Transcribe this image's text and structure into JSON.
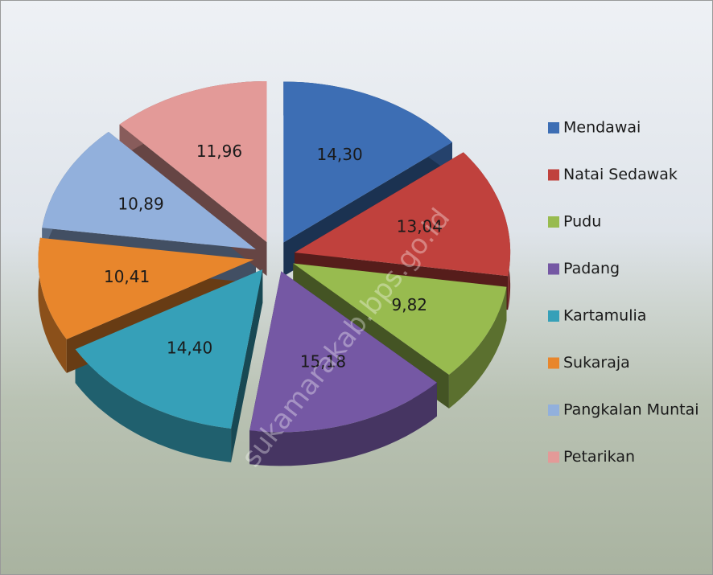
{
  "chart_data": {
    "type": "pie",
    "categories": [
      "Mendawai",
      "Natai Sedawak",
      "Pudu",
      "Padang",
      "Kartamulia",
      "Sukaraja",
      "Pangkalan Muntai",
      "Petarikan"
    ],
    "values": [
      14.3,
      13.04,
      9.82,
      15.18,
      14.4,
      10.41,
      10.89,
      11.96
    ],
    "value_labels": [
      "14,30",
      "13,04",
      "9,82",
      "15,18",
      "14,40",
      "10,41",
      "10,89",
      "11,96"
    ],
    "colors": [
      "#3d6eb4",
      "#c0413d",
      "#98bb4f",
      "#7558a4",
      "#36a0b8",
      "#e8862c",
      "#92b0dc",
      "#e39a98"
    ],
    "legend": "right",
    "watermark": "sukamarakab.bps.go.id"
  }
}
